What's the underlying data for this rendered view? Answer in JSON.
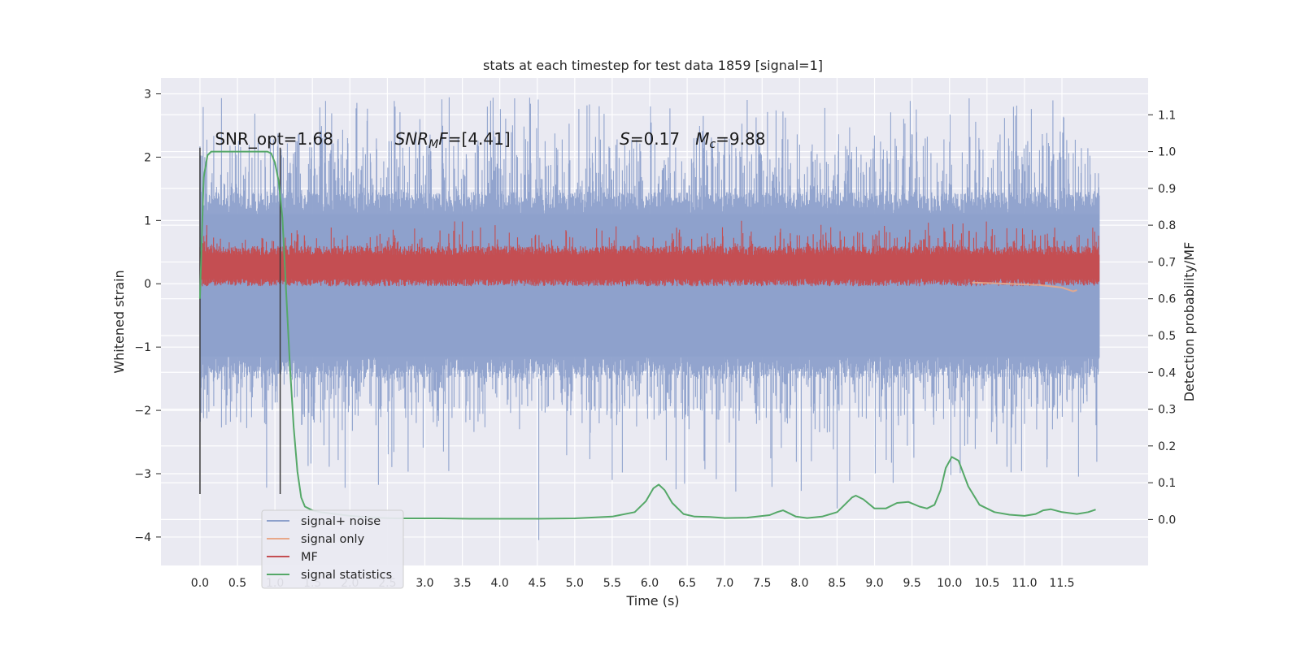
{
  "chart_data": {
    "type": "line",
    "title": "stats at each timestep for test data 1859 [signal=1]",
    "xlabel": "Time (s)",
    "ylabel": "Whitened strain",
    "y2label": "Detection probability/MF",
    "xlim": [
      -0.52,
      12.65
    ],
    "ylim": [
      -4.45,
      3.25
    ],
    "y2lim": [
      -0.125,
      1.2
    ],
    "x_ticks": [
      0.0,
      0.5,
      1.0,
      1.5,
      2.0,
      2.5,
      3.0,
      3.5,
      4.0,
      4.5,
      5.0,
      5.5,
      6.0,
      6.5,
      7.0,
      7.5,
      8.0,
      8.5,
      9.0,
      9.5,
      10.0,
      10.5,
      11.0,
      11.5
    ],
    "x_tick_labels": [
      "0.0",
      "0.5",
      "1.0",
      "1.5",
      "2.0",
      "2.5",
      "3.0",
      "3.5",
      "4.0",
      "4.5",
      "5.0",
      "5.5",
      "6.0",
      "6.5",
      "7.0",
      "7.5",
      "8.0",
      "8.5",
      "9.0",
      "9.5",
      "10.0",
      "10.5",
      "11.0",
      "11.5"
    ],
    "y_ticks": [
      -4,
      -3,
      -2,
      -1,
      0,
      1,
      2,
      3
    ],
    "y_tick_labels": [
      "−4",
      "−3",
      "−2",
      "−1",
      "0",
      "1",
      "2",
      "3"
    ],
    "y2_ticks": [
      0.0,
      0.1,
      0.2,
      0.3,
      0.4,
      0.5,
      0.6,
      0.7,
      0.8,
      0.9,
      1.0,
      1.1
    ],
    "y2_tick_labels": [
      "0.0",
      "0.1",
      "0.2",
      "0.3",
      "0.4",
      "0.5",
      "0.6",
      "0.7",
      "0.8",
      "0.9",
      "1.0",
      "1.1"
    ],
    "grid": true,
    "legend_position": "lower-left",
    "legend": [
      {
        "name": "signal+ noise",
        "color": "#8da0cb"
      },
      {
        "name": "signal only",
        "color": "#e8a889"
      },
      {
        "name": "MF",
        "color": "#c44e52"
      },
      {
        "name": "signal statistics",
        "color": "#55a868"
      }
    ],
    "annotations": [
      {
        "text": "SNR_opt=1.68",
        "x": 0.2,
        "y": 2.2
      },
      {
        "text": "SNR_MF=[4.41]",
        "x": 2.6,
        "y": 2.2
      },
      {
        "text": "S=0.17   M_c=9.88",
        "x": 5.6,
        "y": 2.2
      }
    ],
    "vertical_lines": [
      {
        "x": 0.0,
        "y_from": -3.32,
        "y_to": 2.15
      },
      {
        "x": 1.07,
        "y_from": -3.32,
        "y_to": 2.15
      }
    ],
    "noise": {
      "x_start": 0.0,
      "x_end": 12.0,
      "envelope_top": 1.1,
      "envelope_bottom": -1.15,
      "spike_max": 2.95,
      "spike_min": -4.05
    },
    "mf": {
      "x_start": 0.0,
      "x_end": 12.0,
      "band_bottom": 0.08,
      "band_top": 0.45,
      "spike_max": 1.0
    },
    "signal_only": {
      "x": [
        10.3,
        10.8,
        11.2,
        11.5,
        11.65,
        11.7
      ],
      "y": [
        0.02,
        0.0,
        -0.02,
        -0.06,
        -0.12,
        -0.1
      ]
    },
    "signal_statistics": {
      "axis": "right",
      "x": [
        0.0,
        0.05,
        0.1,
        0.15,
        0.2,
        0.3,
        0.5,
        0.7,
        0.9,
        0.95,
        1.0,
        1.05,
        1.1,
        1.15,
        1.2,
        1.25,
        1.3,
        1.35,
        1.4,
        1.45,
        1.5,
        1.6,
        1.8,
        2.0,
        2.3,
        2.6,
        2.9,
        3.2,
        3.6,
        4.0,
        4.5,
        5.0,
        5.5,
        5.8,
        5.95,
        6.05,
        6.12,
        6.2,
        6.3,
        6.45,
        6.6,
        6.8,
        7.0,
        7.3,
        7.6,
        7.7,
        7.78,
        7.85,
        7.95,
        8.1,
        8.3,
        8.5,
        8.6,
        8.7,
        8.75,
        8.85,
        9.0,
        9.15,
        9.3,
        9.45,
        9.6,
        9.7,
        9.8,
        9.88,
        9.95,
        10.03,
        10.12,
        10.25,
        10.4,
        10.6,
        10.8,
        11.0,
        11.15,
        11.25,
        11.35,
        11.5,
        11.7,
        11.85,
        11.95
      ],
      "y": [
        0.6,
        0.93,
        0.99,
        1.0,
        1.0,
        1.0,
        1.0,
        1.0,
        1.0,
        0.995,
        0.97,
        0.92,
        0.82,
        0.62,
        0.42,
        0.25,
        0.13,
        0.06,
        0.035,
        0.03,
        0.025,
        0.02,
        0.015,
        0.01,
        0.005,
        0.003,
        0.003,
        0.003,
        0.002,
        0.002,
        0.002,
        0.003,
        0.008,
        0.02,
        0.05,
        0.085,
        0.095,
        0.08,
        0.045,
        0.015,
        0.008,
        0.007,
        0.004,
        0.005,
        0.012,
        0.02,
        0.025,
        0.018,
        0.008,
        0.004,
        0.008,
        0.02,
        0.04,
        0.06,
        0.065,
        0.055,
        0.03,
        0.03,
        0.045,
        0.048,
        0.035,
        0.03,
        0.04,
        0.08,
        0.14,
        0.17,
        0.16,
        0.09,
        0.04,
        0.02,
        0.013,
        0.01,
        0.015,
        0.025,
        0.028,
        0.02,
        0.015,
        0.02,
        0.027
      ]
    }
  }
}
